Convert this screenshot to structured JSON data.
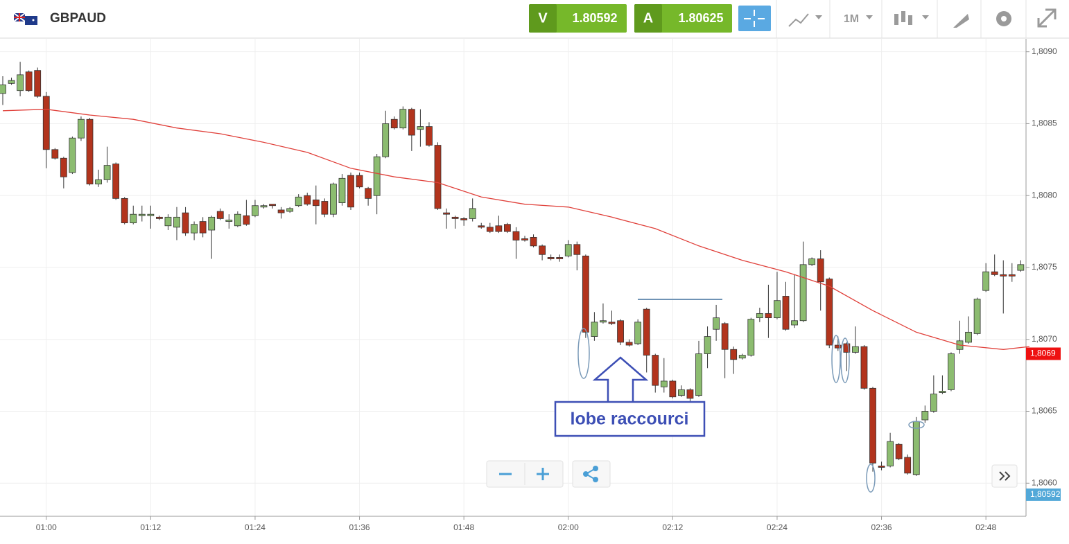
{
  "toolbar": {
    "symbol": "GBPAUD",
    "sell_label": "V",
    "sell_price": "1.80592",
    "buy_label": "A",
    "buy_price": "1.80625",
    "timeframe": "1M"
  },
  "chart_data": {
    "type": "candlestick",
    "categories": [
      null,
      null,
      null,
      null,
      null,
      "01:00",
      null,
      null,
      null,
      null,
      null,
      null,
      null,
      null,
      null,
      null,
      null,
      "01:12",
      null,
      null,
      null,
      null,
      null,
      null,
      null,
      null,
      null,
      null,
      null,
      "01:24",
      null,
      null,
      null,
      null,
      null,
      null,
      null,
      null,
      null,
      null,
      null,
      "01:36",
      null,
      null,
      null,
      null,
      null,
      null,
      null,
      null,
      null,
      null,
      null,
      "01:48",
      null,
      null,
      null,
      null,
      null,
      null,
      null,
      null,
      null,
      null,
      null,
      "02:00",
      null,
      null,
      null,
      null,
      null,
      null,
      null,
      null,
      null,
      null,
      null,
      "02:12",
      null,
      null,
      null,
      null,
      null,
      null,
      null,
      null,
      null,
      null,
      null,
      "02:24",
      null,
      null,
      null,
      null,
      null,
      null,
      null,
      null,
      null,
      null,
      null,
      "02:36",
      null,
      null,
      null,
      null,
      null,
      null,
      null,
      null,
      null,
      null,
      null,
      "02:48",
      null,
      null,
      null,
      null
    ],
    "open": [
      1.80871,
      1.80878,
      1.80873,
      1.80886,
      1.80887,
      1.80869,
      1.80832,
      1.80826,
      1.80816,
      1.8084,
      1.80853,
      1.80808,
      1.80811,
      1.80822,
      1.80798,
      1.80781,
      1.80786,
      1.80786,
      1.80785,
      1.80779,
      1.80778,
      1.80788,
      1.80774,
      1.80782,
      1.80776,
      1.80789,
      1.80782,
      1.80779,
      1.80786,
      1.80786,
      1.80792,
      1.80794,
      1.8079,
      1.80789,
      1.80793,
      1.808,
      1.80797,
      1.80796,
      1.80787,
      1.80795,
      1.80814,
      1.80814,
      1.80805,
      1.808,
      1.80827,
      1.80853,
      1.80847,
      1.8086,
      1.80846,
      1.80848,
      1.80835,
      1.80788,
      1.80785,
      1.80784,
      1.80784,
      1.80779,
      1.80778,
      1.80779,
      1.8078,
      1.80775,
      1.8077,
      1.80771,
      1.80765,
      1.80757,
      1.80757,
      1.80758,
      1.80766,
      1.80758,
      1.80702,
      1.80712,
      1.80712,
      1.80713,
      1.80698,
      1.80697,
      1.80721,
      1.80689,
      1.80667,
      1.80671,
      1.80661,
      1.80665,
      1.80661,
      1.8069,
      1.80707,
      1.80711,
      1.80693,
      1.80687,
      1.80689,
      1.80715,
      1.80718,
      1.80715,
      1.8073,
      1.8071,
      1.80713,
      1.80752,
      1.80756,
      1.80742,
      1.80696,
      1.80697,
      1.80691,
      1.80695,
      1.80666,
      1.80612,
      1.80612,
      1.80627,
      1.80618,
      1.80606,
      1.80644,
      1.8065,
      1.80663,
      1.80665,
      1.80693,
      1.80698,
      1.80704,
      1.80734,
      1.80747,
      1.80745,
      1.80745,
      1.80748
    ],
    "high": [
      1.80883,
      1.80882,
      1.80893,
      1.80887,
      1.80889,
      1.80872,
      1.80833,
      1.80827,
      1.80841,
      1.80855,
      1.80854,
      1.80818,
      1.80834,
      1.80823,
      1.80799,
      1.80793,
      1.80793,
      1.80793,
      1.80786,
      1.80787,
      1.80792,
      1.80792,
      1.80782,
      1.80785,
      1.80786,
      1.80791,
      1.80787,
      1.80789,
      1.80797,
      1.80797,
      1.80794,
      1.80794,
      1.80792,
      1.80792,
      1.80801,
      1.80802,
      1.80807,
      1.80798,
      1.80809,
      1.80815,
      1.80816,
      1.80816,
      1.80806,
      1.80829,
      1.80859,
      1.80855,
      1.80862,
      1.80861,
      1.8086,
      1.80851,
      1.80837,
      1.80791,
      1.80786,
      1.80785,
      1.80798,
      1.80781,
      1.80781,
      1.80786,
      1.80781,
      1.80778,
      1.80772,
      1.80773,
      1.80766,
      1.80759,
      1.80759,
      1.80769,
      1.80768,
      1.80759,
      1.80719,
      1.80725,
      1.8072,
      1.80714,
      1.807,
      1.80714,
      1.80722,
      1.8069,
      1.80687,
      1.80672,
      1.80668,
      1.80666,
      1.80699,
      1.80709,
      1.80724,
      1.80712,
      1.80695,
      1.8069,
      1.80715,
      1.80722,
      1.80738,
      1.80747,
      1.8074,
      1.80745,
      1.80768,
      1.80757,
      1.80762,
      1.80743,
      1.80702,
      1.80698,
      1.80709,
      1.80696,
      1.80667,
      1.80615,
      1.80635,
      1.80628,
      1.8062,
      1.80646,
      1.80654,
      1.80675,
      1.80675,
      1.80691,
      1.80713,
      1.80716,
      1.80729,
      1.80753,
      1.80759,
      1.80755,
      1.80753,
      1.80755
    ],
    "low": [
      1.80863,
      1.80877,
      1.80869,
      1.80872,
      1.80868,
      1.80819,
      1.80825,
      1.80805,
      1.80815,
      1.80838,
      1.80807,
      1.80806,
      1.80809,
      1.80797,
      1.8078,
      1.8078,
      1.80782,
      1.80777,
      1.80783,
      1.80776,
      1.80769,
      1.80772,
      1.80769,
      1.80771,
      1.80756,
      1.80783,
      1.80777,
      1.80778,
      1.80779,
      1.80785,
      1.80791,
      1.80791,
      1.80784,
      1.80788,
      1.80792,
      1.80793,
      1.8078,
      1.80785,
      1.80785,
      1.80793,
      1.8079,
      1.80805,
      1.80793,
      1.80787,
      1.80826,
      1.80846,
      1.80846,
      1.80831,
      1.80834,
      1.80834,
      1.8079,
      1.80777,
      1.80777,
      1.80779,
      1.80782,
      1.80777,
      1.80774,
      1.80774,
      1.80774,
      1.80756,
      1.80768,
      1.80764,
      1.80755,
      1.80755,
      1.80754,
      1.80757,
      1.80748,
      1.80701,
      1.80699,
      1.80711,
      1.8071,
      1.80696,
      1.80695,
      1.80696,
      1.80677,
      1.80663,
      1.80663,
      1.80659,
      1.8066,
      1.80657,
      1.8066,
      1.8068,
      1.80699,
      1.80673,
      1.80676,
      1.80686,
      1.80688,
      1.80712,
      1.80701,
      1.80714,
      1.80706,
      1.80708,
      1.80712,
      1.80751,
      1.8072,
      1.80694,
      1.80692,
      1.80678,
      1.8069,
      1.80665,
      1.80608,
      1.80609,
      1.80611,
      1.80616,
      1.80606,
      1.80605,
      1.80642,
      1.80649,
      1.80662,
      1.80664,
      1.8069,
      1.80697,
      1.80703,
      1.80733,
      1.80744,
      1.80718,
      1.8074,
      1.80747
    ],
    "close": [
      1.80877,
      1.8088,
      1.80884,
      1.80873,
      1.80869,
      1.80832,
      1.80826,
      1.80813,
      1.8084,
      1.80853,
      1.80808,
      1.80811,
      1.80821,
      1.80798,
      1.80781,
      1.80787,
      1.80787,
      1.80787,
      1.80784,
      1.80785,
      1.80785,
      1.80774,
      1.8078,
      1.80774,
      1.80785,
      1.80784,
      1.80783,
      1.80787,
      1.8078,
      1.80793,
      1.80793,
      1.80793,
      1.80788,
      1.80791,
      1.80799,
      1.80794,
      1.80793,
      1.80787,
      1.80808,
      1.80812,
      1.80792,
      1.80806,
      1.80798,
      1.80827,
      1.8085,
      1.80847,
      1.8086,
      1.80842,
      1.80848,
      1.80835,
      1.80791,
      1.80787,
      1.80784,
      1.80783,
      1.80791,
      1.80778,
      1.80775,
      1.80775,
      1.80775,
      1.80769,
      1.80769,
      1.80765,
      1.80759,
      1.80756,
      1.80756,
      1.80766,
      1.80759,
      1.80705,
      1.80712,
      1.80713,
      1.80711,
      1.80698,
      1.80696,
      1.80712,
      1.80689,
      1.80668,
      1.80671,
      1.8066,
      1.80665,
      1.80659,
      1.8069,
      1.80702,
      1.80715,
      1.80693,
      1.80686,
      1.80689,
      1.80714,
      1.80718,
      1.80715,
      1.80727,
      1.80707,
      1.80713,
      1.80752,
      1.80756,
      1.8074,
      1.80696,
      1.80694,
      1.80691,
      1.80695,
      1.80666,
      1.80614,
      1.80611,
      1.80629,
      1.80617,
      1.80607,
      1.80643,
      1.8065,
      1.80662,
      1.80664,
      1.8069,
      1.80699,
      1.80705,
      1.80728,
      1.80747,
      1.80745,
      1.80744,
      1.80744,
      1.80752
    ],
    "up_color": "#8cbc70",
    "down_color": "#b2341d",
    "moving_average": {
      "color": "#e0403a",
      "x": [
        0,
        5,
        10,
        15,
        20,
        25,
        30,
        35,
        40,
        45,
        50,
        55,
        60,
        65,
        70,
        75,
        80,
        85,
        90,
        95,
        100,
        105,
        110,
        115,
        118
      ],
      "values": [
        1.80859,
        1.8086,
        1.80856,
        1.80853,
        1.80847,
        1.80843,
        1.80837,
        1.8083,
        1.80819,
        1.80813,
        1.80809,
        1.80799,
        1.80794,
        1.80792,
        1.80785,
        1.80777,
        1.80765,
        1.80755,
        1.80747,
        1.80737,
        1.8072,
        1.80705,
        1.80696,
        1.80693,
        1.80695
      ]
    },
    "ylim": [
      1.80577,
      1.80909
    ],
    "yticks": [
      {
        "value": 1.806,
        "label": "1,8060"
      },
      {
        "value": 1.8065,
        "label": "1,8065"
      },
      {
        "value": 1.807,
        "label": "1,8070"
      },
      {
        "value": 1.8075,
        "label": "1,8075"
      },
      {
        "value": 1.808,
        "label": "1,8080"
      },
      {
        "value": 1.8085,
        "label": "1,8085"
      },
      {
        "value": 1.809,
        "label": "1,8090"
      }
    ],
    "grid": true,
    "price_markers": [
      {
        "value": 1.8069,
        "label": "1,8069",
        "color": "#ee1111"
      },
      {
        "value": 1.80592,
        "label": "1,80592",
        "color": "#52a8d8"
      }
    ],
    "annotation": "lobe raccourci"
  }
}
